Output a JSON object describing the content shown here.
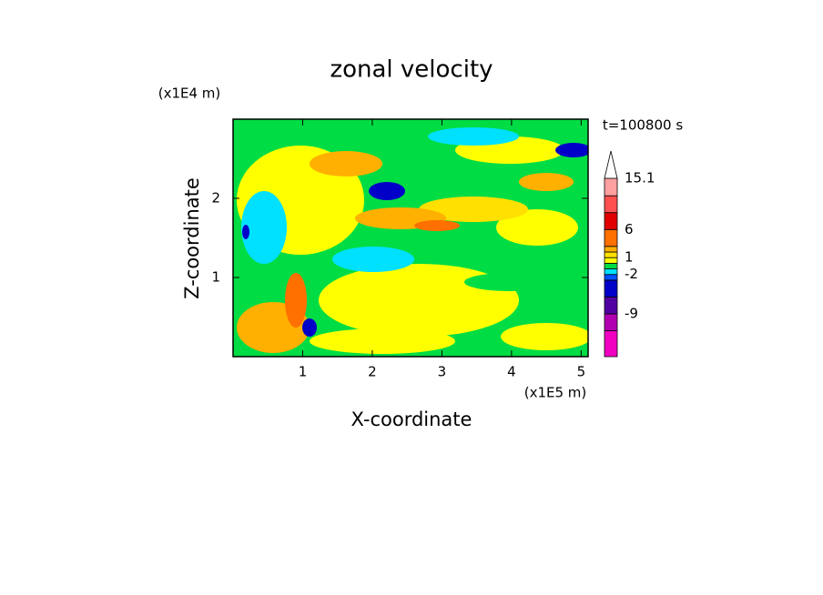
{
  "chart_data": {
    "type": "contour",
    "title": "zonal velocity",
    "x_label": "X-coordinate",
    "y_label": "Z-coordinate",
    "x_unit": "(x1E5 m)",
    "y_unit": "(x1E4 m)",
    "annotation": "t=100800 s",
    "xlim": [
      0,
      5.1
    ],
    "xticks": [
      1,
      2,
      3,
      4,
      5
    ],
    "ylim": [
      0,
      3.0
    ],
    "yticks": [
      1,
      2
    ],
    "colorbar": {
      "lim": [
        -16.6,
        15.1
      ],
      "levels": [
        -12,
        -9,
        -6,
        -3,
        -2,
        -1,
        0,
        1,
        2,
        3,
        6,
        9,
        12,
        15.1
      ],
      "colors": [
        "#f000c0",
        "#b000b0",
        "#5000a0",
        "#0000c8",
        "#0050ff",
        "#00e0ff",
        "#00dd44",
        "#ffff00",
        "#ffe000",
        "#ffb000",
        "#ff7000",
        "#e00000",
        "#ff5050",
        "#ffa0a0",
        "#ffffff"
      ],
      "ticks": [
        -9,
        -2,
        1,
        6,
        15.1
      ]
    }
  }
}
